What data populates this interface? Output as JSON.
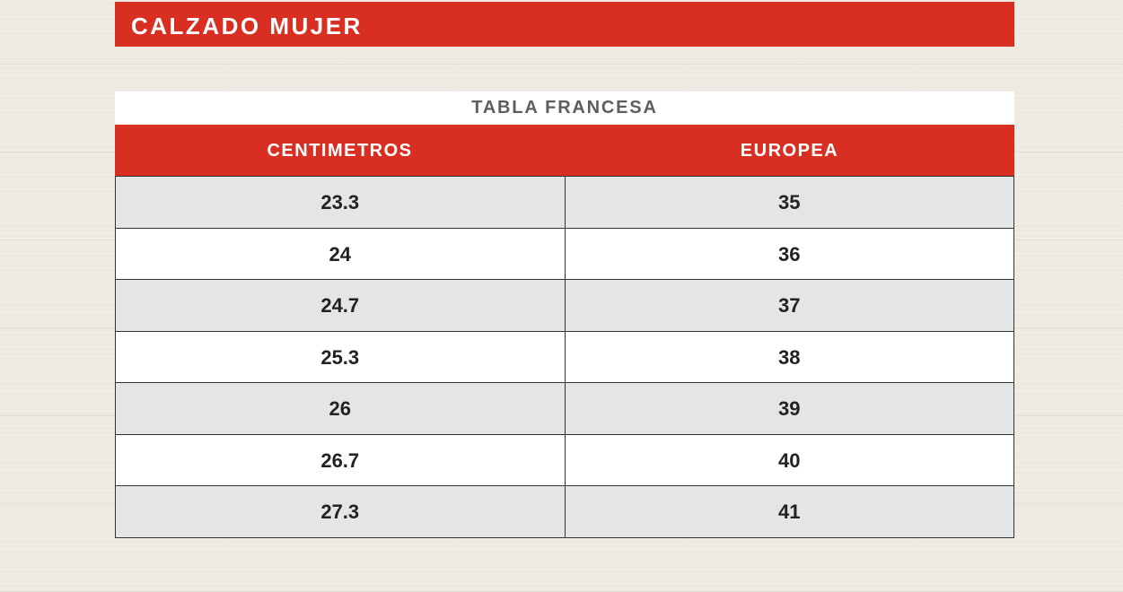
{
  "title": "CALZADO MUJER",
  "table": {
    "subtitle": "TABLA FRANCESA",
    "headers": [
      "CENTIMETROS",
      "EUROPEA"
    ],
    "rows": [
      [
        "23.3",
        "35"
      ],
      [
        "24",
        "36"
      ],
      [
        "24.7",
        "37"
      ],
      [
        "25.3",
        "38"
      ],
      [
        "26",
        "39"
      ],
      [
        "26.7",
        "40"
      ],
      [
        "27.3",
        "41"
      ]
    ]
  },
  "colors": {
    "accent": "#d92f23",
    "row_alt": "#e4e5e6"
  }
}
